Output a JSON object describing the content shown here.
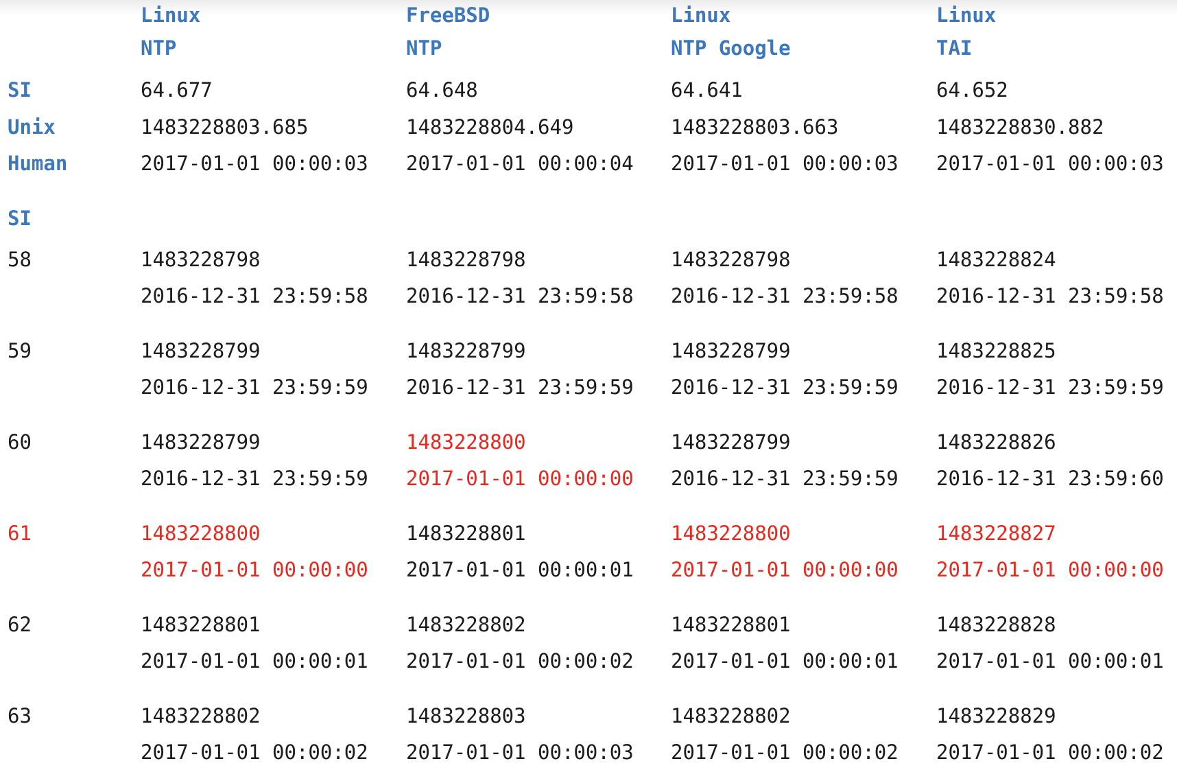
{
  "columns": [
    {
      "line1": "Linux",
      "line2": "NTP"
    },
    {
      "line1": "FreeBSD",
      "line2": "NTP"
    },
    {
      "line1": "Linux",
      "line2": "NTP Google"
    },
    {
      "line1": "Linux",
      "line2": "TAI"
    }
  ],
  "summary": [
    {
      "label": "SI",
      "values": [
        "64.677",
        "64.648",
        "64.641",
        "64.652"
      ]
    },
    {
      "label": "Unix",
      "values": [
        "1483228803.685",
        "1483228804.649",
        "1483228803.663",
        "1483228830.882"
      ]
    },
    {
      "label": "Human",
      "values": [
        "2017-01-01 00:00:03",
        "2017-01-01 00:00:04",
        "2017-01-01 00:00:03",
        "2017-01-01 00:00:03"
      ]
    }
  ],
  "si_section_label": "SI",
  "rows": [
    {
      "si": "58",
      "si_highlight": false,
      "cells": [
        {
          "unix": "1483228798",
          "human": "2016-12-31 23:59:58",
          "highlight": false
        },
        {
          "unix": "1483228798",
          "human": "2016-12-31 23:59:58",
          "highlight": false
        },
        {
          "unix": "1483228798",
          "human": "2016-12-31 23:59:58",
          "highlight": false
        },
        {
          "unix": "1483228824",
          "human": "2016-12-31 23:59:58",
          "highlight": false
        }
      ]
    },
    {
      "si": "59",
      "si_highlight": false,
      "cells": [
        {
          "unix": "1483228799",
          "human": "2016-12-31 23:59:59",
          "highlight": false
        },
        {
          "unix": "1483228799",
          "human": "2016-12-31 23:59:59",
          "highlight": false
        },
        {
          "unix": "1483228799",
          "human": "2016-12-31 23:59:59",
          "highlight": false
        },
        {
          "unix": "1483228825",
          "human": "2016-12-31 23:59:59",
          "highlight": false
        }
      ]
    },
    {
      "si": "60",
      "si_highlight": false,
      "cells": [
        {
          "unix": "1483228799",
          "human": "2016-12-31 23:59:59",
          "highlight": false
        },
        {
          "unix": "1483228800",
          "human": "2017-01-01 00:00:00",
          "highlight": true
        },
        {
          "unix": "1483228799",
          "human": "2016-12-31 23:59:59",
          "highlight": false
        },
        {
          "unix": "1483228826",
          "human": "2016-12-31 23:59:60",
          "highlight": false
        }
      ]
    },
    {
      "si": "61",
      "si_highlight": true,
      "cells": [
        {
          "unix": "1483228800",
          "human": "2017-01-01 00:00:00",
          "highlight": true
        },
        {
          "unix": "1483228801",
          "human": "2017-01-01 00:00:01",
          "highlight": false
        },
        {
          "unix": "1483228800",
          "human": "2017-01-01 00:00:00",
          "highlight": true
        },
        {
          "unix": "1483228827",
          "human": "2017-01-01 00:00:00",
          "highlight": true
        }
      ]
    },
    {
      "si": "62",
      "si_highlight": false,
      "cells": [
        {
          "unix": "1483228801",
          "human": "2017-01-01 00:00:01",
          "highlight": false
        },
        {
          "unix": "1483228802",
          "human": "2017-01-01 00:00:02",
          "highlight": false
        },
        {
          "unix": "1483228801",
          "human": "2017-01-01 00:00:01",
          "highlight": false
        },
        {
          "unix": "1483228828",
          "human": "2017-01-01 00:00:01",
          "highlight": false
        }
      ]
    },
    {
      "si": "63",
      "si_highlight": false,
      "cells": [
        {
          "unix": "1483228802",
          "human": "2017-01-01 00:00:02",
          "highlight": false
        },
        {
          "unix": "1483228803",
          "human": "2017-01-01 00:00:03",
          "highlight": false
        },
        {
          "unix": "1483228802",
          "human": "2017-01-01 00:00:02",
          "highlight": false
        },
        {
          "unix": "1483228829",
          "human": "2017-01-01 00:00:02",
          "highlight": false
        }
      ]
    }
  ],
  "colors": {
    "header": "#3d78bd",
    "highlight": "#e8281e",
    "text": "#1c1c1c"
  }
}
